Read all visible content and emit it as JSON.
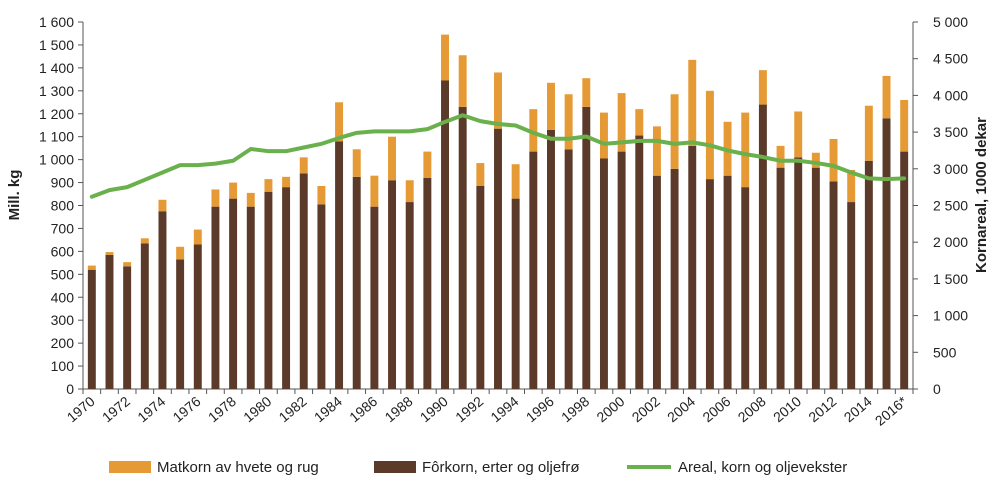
{
  "chart_data": {
    "type": "bar",
    "stacked": true,
    "categories": [
      "1970",
      "1971",
      "1972",
      "1973",
      "1974",
      "1975",
      "1976",
      "1977",
      "1978",
      "1979",
      "1980",
      "1981",
      "1982",
      "1983",
      "1984",
      "1985",
      "1986",
      "1987",
      "1988",
      "1989",
      "1990",
      "1991",
      "1992",
      "1993",
      "1994",
      "1995",
      "1996",
      "1997",
      "1998",
      "1999",
      "2000",
      "2001",
      "2002",
      "2003",
      "2004",
      "2005",
      "2006",
      "2007",
      "2008",
      "2009",
      "2010",
      "2011",
      "2012",
      "2013",
      "2014",
      "2015",
      "2016*"
    ],
    "x_tick_labels": [
      "1970",
      "1972",
      "1974",
      "1976",
      "1978",
      "1980",
      "1982",
      "1984",
      "1986",
      "1988",
      "1990",
      "1992",
      "1994",
      "1996",
      "1998",
      "2000",
      "2002",
      "2004",
      "2006",
      "2008",
      "2010",
      "2012",
      "2014",
      "2016*"
    ],
    "series": [
      {
        "name": "Fôrkorn, erter og oljefrø",
        "type": "bar",
        "axis": "left",
        "color": "#5b3a2a",
        "values": [
          520,
          585,
          535,
          635,
          775,
          565,
          630,
          795,
          830,
          795,
          860,
          880,
          940,
          805,
          1080,
          925,
          795,
          910,
          815,
          920,
          1345,
          1230,
          885,
          1135,
          830,
          1035,
          1130,
          1045,
          1230,
          1005,
          1035,
          1105,
          930,
          960,
          1060,
          915,
          930,
          880,
          1240,
          965,
          1010,
          965,
          905,
          815,
          995,
          1180,
          1035
        ]
      },
      {
        "name": "Matkorn av hvete og rug",
        "type": "bar",
        "axis": "left",
        "color": "#e59a35",
        "values": [
          18,
          12,
          18,
          22,
          50,
          55,
          65,
          75,
          70,
          60,
          55,
          45,
          70,
          80,
          170,
          120,
          135,
          190,
          95,
          115,
          200,
          225,
          100,
          245,
          150,
          185,
          205,
          240,
          125,
          200,
          255,
          115,
          215,
          325,
          375,
          385,
          235,
          325,
          150,
          95,
          200,
          65,
          185,
          140,
          240,
          185,
          225
        ]
      },
      {
        "name": "Areal, korn og oljevekster",
        "type": "line",
        "axis": "right",
        "color": "#6ab04c",
        "values": [
          2620,
          2710,
          2750,
          2850,
          2950,
          3050,
          3050,
          3070,
          3110,
          3270,
          3240,
          3240,
          3290,
          3340,
          3420,
          3490,
          3510,
          3510,
          3510,
          3540,
          3640,
          3730,
          3650,
          3610,
          3590,
          3490,
          3410,
          3410,
          3440,
          3340,
          3360,
          3380,
          3380,
          3340,
          3360,
          3320,
          3250,
          3200,
          3160,
          3110,
          3110,
          3080,
          3040,
          2950,
          2870,
          2860,
          2870
        ]
      }
    ],
    "y_left": {
      "label": "Mill. kg",
      "min": 0,
      "max": 1600,
      "ticks": [
        "0",
        "100",
        "200",
        "300",
        "400",
        "500",
        "600",
        "700",
        "800",
        "900",
        "1 000",
        "1 100",
        "1 200",
        "1 300",
        "1 400",
        "1 500",
        "1 600"
      ]
    },
    "y_right": {
      "label": "Kornareal, 1000 dekar",
      "min": 0,
      "max": 5000,
      "ticks": [
        "0",
        "500",
        "1 000",
        "1 500",
        "2 000",
        "2 500",
        "3 000",
        "3 500",
        "4 000",
        "4 500",
        "5 000"
      ]
    },
    "legend": {
      "placement": "bottom",
      "entries": [
        "Matkorn av hvete og rug",
        "Fôrkorn, erter og oljefrø",
        "Areal, korn og oljevekster"
      ]
    },
    "grid": false
  }
}
